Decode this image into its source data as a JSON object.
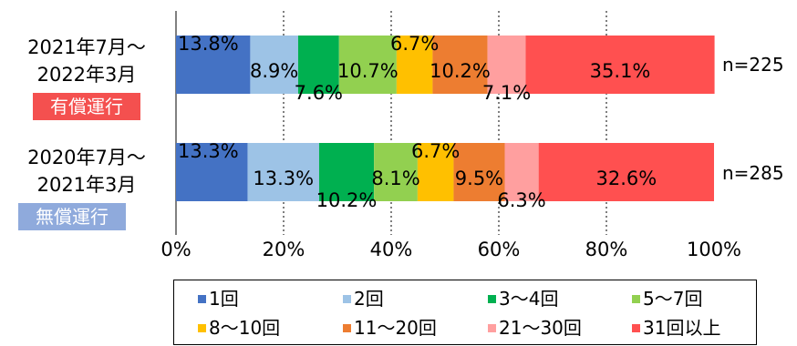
{
  "chart_data": {
    "type": "bar",
    "orientation": "horizontal",
    "stacked": true,
    "xlim": [
      0,
      100
    ],
    "xticks": [
      "0%",
      "20%",
      "40%",
      "60%",
      "80%",
      "100%"
    ],
    "grid": "vertical-dotted",
    "legend_position": "bottom",
    "categories": [
      {
        "period_line1": "2021年7月～",
        "period_line2": "2022年3月",
        "badge": "有償運行",
        "badge_color": "#f4504f",
        "n": "n=225"
      },
      {
        "period_line1": "2020年7月～",
        "period_line2": "2021年3月",
        "badge": "無償運行",
        "badge_color": "#8faadc",
        "n": "n=285"
      }
    ],
    "series": [
      {
        "name": "1回",
        "color": "#4472c4",
        "values": [
          13.8,
          13.3
        ],
        "labels": [
          "13.8%",
          "13.3%"
        ]
      },
      {
        "name": "2回",
        "color": "#9dc3e6",
        "values": [
          8.9,
          13.3
        ],
        "labels": [
          "8.9%",
          "13.3%"
        ]
      },
      {
        "name": "3～4回",
        "color": "#00b050",
        "values": [
          7.6,
          10.2
        ],
        "labels": [
          "7.6%",
          "10.2%"
        ]
      },
      {
        "name": "5～7回",
        "color": "#92d050",
        "values": [
          10.7,
          8.1
        ],
        "labels": [
          "10.7%",
          "8.1%"
        ]
      },
      {
        "name": "8～10回",
        "color": "#ffc000",
        "values": [
          6.7,
          6.7
        ],
        "labels": [
          "6.7%",
          "6.7%"
        ]
      },
      {
        "name": "11～20回",
        "color": "#ed7d31",
        "values": [
          10.2,
          9.5
        ],
        "labels": [
          "10.2%",
          "9.5%"
        ]
      },
      {
        "name": "21～30回",
        "color": "#ff9f9f",
        "values": [
          7.1,
          6.3
        ],
        "labels": [
          "7.1%",
          "6.3%"
        ]
      },
      {
        "name": "31回以上",
        "color": "#ff5050",
        "values": [
          35.1,
          32.6
        ],
        "labels": [
          "35.1%",
          "32.6%"
        ]
      }
    ]
  }
}
